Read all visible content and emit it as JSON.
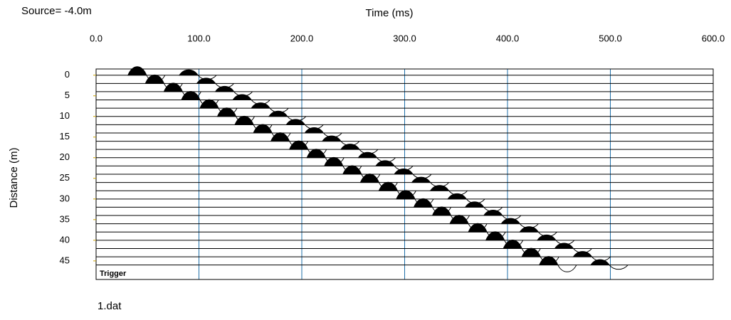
{
  "chart_data": {
    "type": "seismic",
    "title": "Source= -4.0m",
    "xlabel": "Time (ms)",
    "ylabel": "Distance (m)",
    "trigger_label": "Trigger",
    "footer": "1.dat",
    "xlim": [
      0,
      600
    ],
    "xticks": [
      {
        "value": 0,
        "label": "0.0"
      },
      {
        "value": 100,
        "label": "100.0"
      },
      {
        "value": 200,
        "label": "200.0"
      },
      {
        "value": 300,
        "label": "300.0"
      },
      {
        "value": 400,
        "label": "400.0"
      },
      {
        "value": 500,
        "label": "500.0"
      },
      {
        "value": 600,
        "label": "600.0"
      }
    ],
    "ylim": [
      -1.5,
      49.5
    ],
    "yticks": [
      0,
      5,
      10,
      15,
      20,
      25,
      30,
      35,
      40,
      45
    ],
    "grid": true,
    "grid_color": "#1f6fa8",
    "color": "#000000",
    "traces": [
      {
        "distance": 0,
        "events": [
          40,
          90
        ]
      },
      {
        "distance": 2,
        "events": [
          57,
          107
        ]
      },
      {
        "distance": 4,
        "events": [
          75,
          125
        ]
      },
      {
        "distance": 6,
        "events": [
          92,
          142
        ]
      },
      {
        "distance": 8,
        "events": [
          110,
          160
        ]
      },
      {
        "distance": 10,
        "events": [
          127,
          177
        ]
      },
      {
        "distance": 12,
        "events": [
          144,
          194
        ]
      },
      {
        "distance": 14,
        "events": [
          162,
          212
        ]
      },
      {
        "distance": 16,
        "events": [
          179,
          229
        ]
      },
      {
        "distance": 18,
        "events": [
          197,
          247
        ]
      },
      {
        "distance": 20,
        "events": [
          214,
          264
        ]
      },
      {
        "distance": 22,
        "events": [
          231,
          281
        ]
      },
      {
        "distance": 24,
        "events": [
          249,
          299
        ]
      },
      {
        "distance": 26,
        "events": [
          266,
          316
        ]
      },
      {
        "distance": 28,
        "events": [
          284,
          334
        ]
      },
      {
        "distance": 30,
        "events": [
          301,
          351
        ]
      },
      {
        "distance": 32,
        "events": [
          318,
          368
        ]
      },
      {
        "distance": 34,
        "events": [
          336,
          386
        ]
      },
      {
        "distance": 36,
        "events": [
          353,
          403
        ]
      },
      {
        "distance": 38,
        "events": [
          371,
          421
        ]
      },
      {
        "distance": 40,
        "events": [
          388,
          438
        ]
      },
      {
        "distance": 42,
        "events": [
          405,
          455
        ]
      },
      {
        "distance": 44,
        "events": [
          423,
          473
        ]
      },
      {
        "distance": 46,
        "events": [
          440,
          490
        ]
      }
    ]
  }
}
